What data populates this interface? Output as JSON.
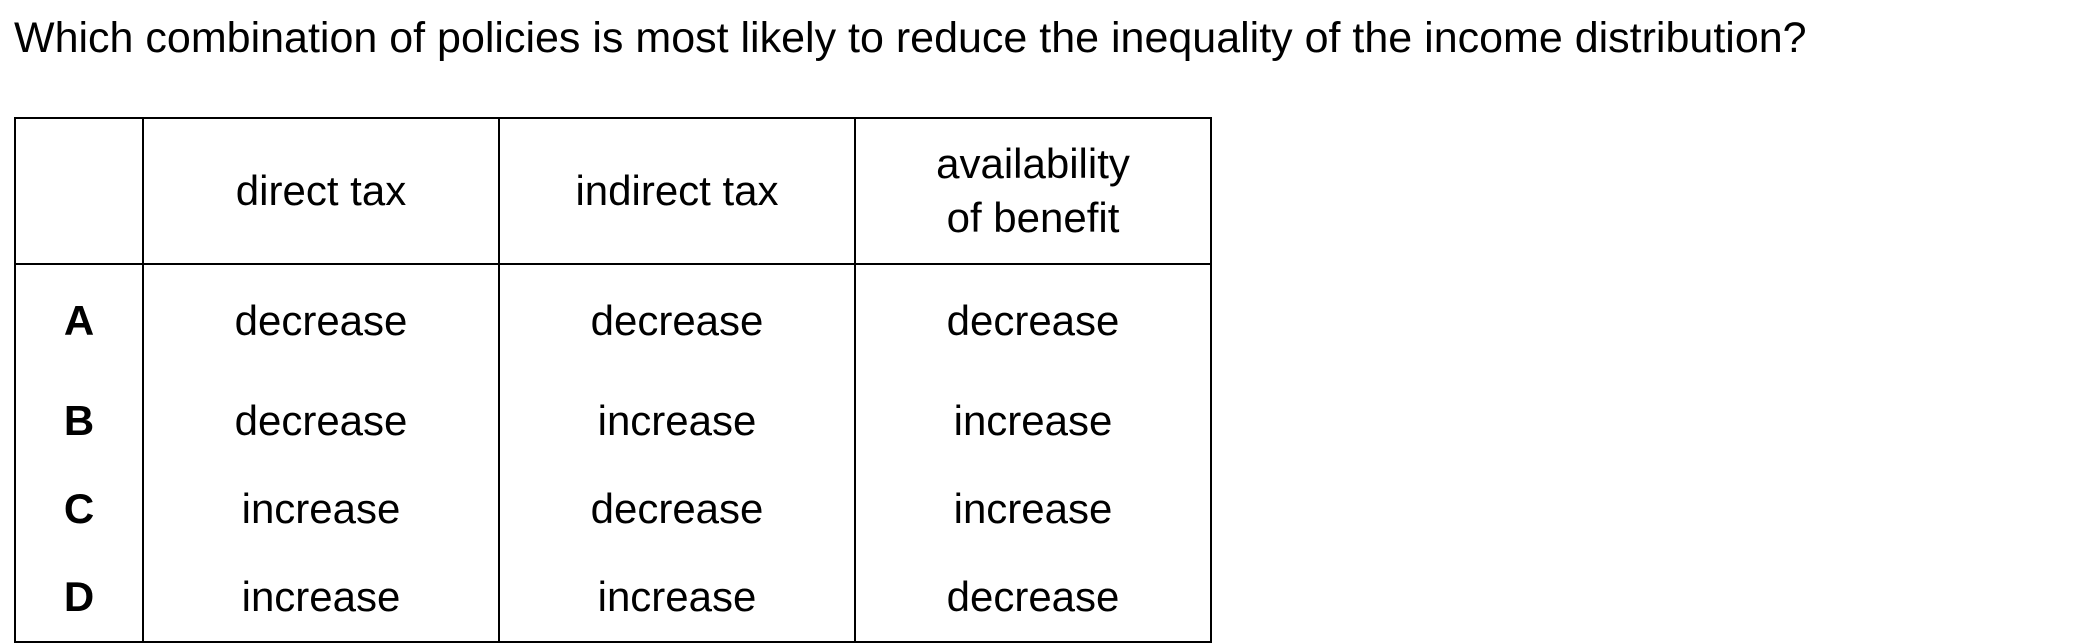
{
  "question": "Which combination of policies is most likely to reduce the inequality of the income distribution?",
  "table": {
    "headers": {
      "blank": "",
      "direct_tax": "direct tax",
      "indirect_tax": "indirect tax",
      "availability_line1": "availability",
      "availability_line2": "of benefit"
    },
    "rows": [
      {
        "letter": "A",
        "direct_tax": "decrease",
        "indirect_tax": "decrease",
        "availability": "decrease"
      },
      {
        "letter": "B",
        "direct_tax": "decrease",
        "indirect_tax": "increase",
        "availability": "increase"
      },
      {
        "letter": "C",
        "direct_tax": "increase",
        "indirect_tax": "decrease",
        "availability": "increase"
      },
      {
        "letter": "D",
        "direct_tax": "increase",
        "indirect_tax": "increase",
        "availability": "decrease"
      }
    ]
  }
}
